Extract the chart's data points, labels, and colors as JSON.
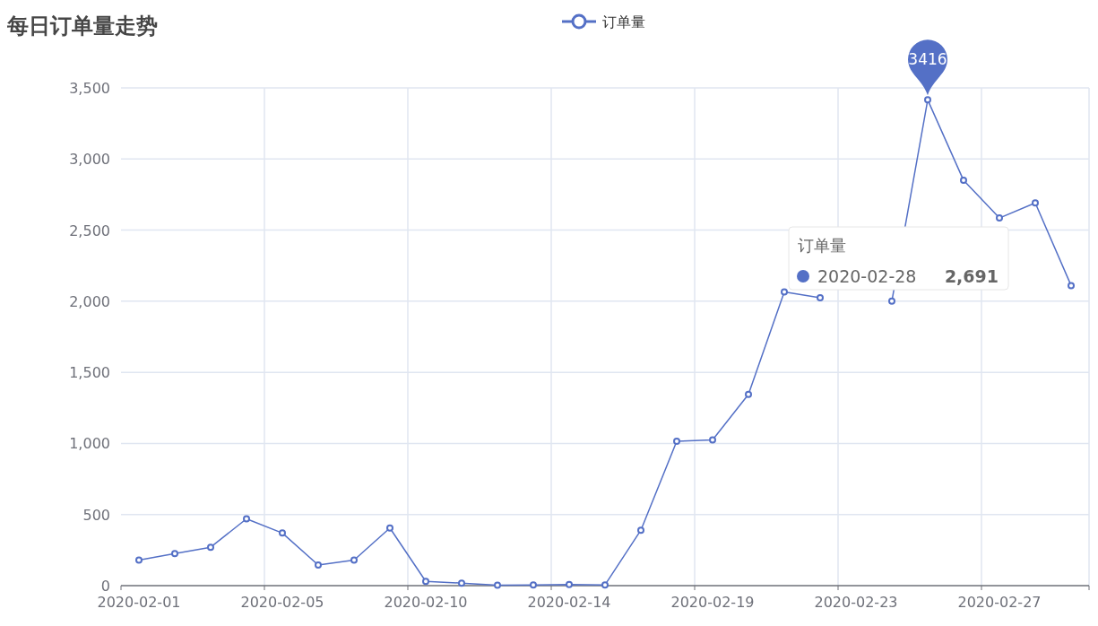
{
  "chart_data": {
    "type": "line",
    "title": "每日订单量走势",
    "categories": [
      "2020-02-01",
      null,
      null,
      null,
      "2020-02-05",
      null,
      null,
      null,
      "2020-02-10",
      null,
      null,
      null,
      "2020-02-14",
      null,
      null,
      null,
      "2020-02-19",
      null,
      null,
      null,
      "2020-02-23",
      null,
      null,
      null,
      "2020-02-27",
      null,
      null
    ],
    "series": [
      {
        "name": "订单量",
        "color": "#5470c6",
        "values": [
          180,
          225,
          270,
          470,
          370,
          145,
          180,
          405,
          30,
          18,
          3,
          5,
          8,
          5,
          390,
          1015,
          1025,
          1345,
          2065,
          2025,
          null,
          2000,
          3416,
          2850,
          2585,
          2691,
          2110
        ],
        "value_labels": [
          null,
          null,
          null,
          null,
          null,
          null,
          null,
          null,
          null,
          null,
          null,
          null,
          null,
          null,
          null,
          null,
          null,
          null,
          null,
          null,
          null,
          null,
          "3416",
          null,
          null,
          null,
          null
        ]
      }
    ],
    "ylim": [
      0,
      3500
    ],
    "yticks": [
      0,
      500,
      {
        "value": 1000,
        "label": "1,000"
      },
      {
        "value": 1500,
        "label": "1,500"
      },
      {
        "value": 2000,
        "label": "2,000"
      },
      {
        "value": 2500,
        "label": "2,500"
      },
      {
        "value": 3000,
        "label": "3,000"
      },
      {
        "value": 3500,
        "label": "3,500"
      }
    ],
    "grid": true,
    "legend": "top",
    "marker": "circle",
    "annotations": [
      "订单量",
      "2020-02-28",
      "2,691"
    ]
  }
}
